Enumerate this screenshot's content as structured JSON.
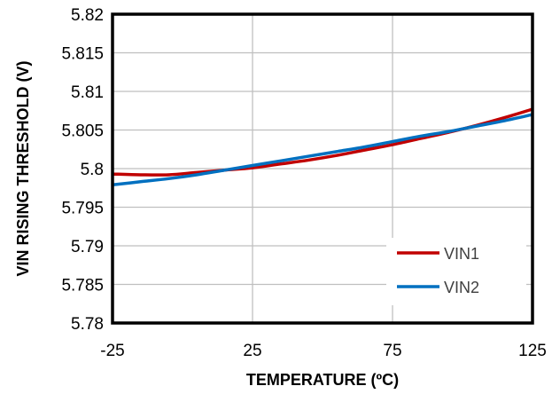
{
  "chart_data": {
    "type": "line",
    "xlabel": "TEMPERATURE (ºC)",
    "ylabel": "VIN RISING THRESHOLD (V)",
    "xlim": [
      -25,
      125
    ],
    "ylim": [
      5.78,
      5.82
    ],
    "xticks": [
      "-25",
      "25",
      "75",
      "125"
    ],
    "yticks": [
      "5.78",
      "5.785",
      "5.79",
      "5.795",
      "5.8",
      "5.805",
      "5.81",
      "5.815",
      "5.82"
    ],
    "grid": true,
    "legend_position": "bottom-right",
    "series": [
      {
        "name": "VIN1",
        "color": "#c00000",
        "x": [
          -25,
          -15,
          -5,
          5,
          15,
          25,
          35,
          45,
          55,
          65,
          75,
          85,
          95,
          105,
          115,
          125
        ],
        "y": [
          5.7993,
          5.7992,
          5.7992,
          5.7995,
          5.7998,
          5.8001,
          5.8006,
          5.8011,
          5.8017,
          5.8024,
          5.8031,
          5.8039,
          5.8047,
          5.8056,
          5.8066,
          5.8077
        ]
      },
      {
        "name": "VIN2",
        "color": "#0070c0",
        "x": [
          -25,
          -15,
          -5,
          5,
          15,
          25,
          35,
          45,
          55,
          65,
          75,
          85,
          95,
          105,
          115,
          125
        ],
        "y": [
          5.7979,
          5.7983,
          5.7987,
          5.7992,
          5.7998,
          5.8004,
          5.801,
          5.8016,
          5.8022,
          5.8028,
          5.8035,
          5.8042,
          5.8048,
          5.8055,
          5.8062,
          5.807
        ]
      }
    ]
  }
}
